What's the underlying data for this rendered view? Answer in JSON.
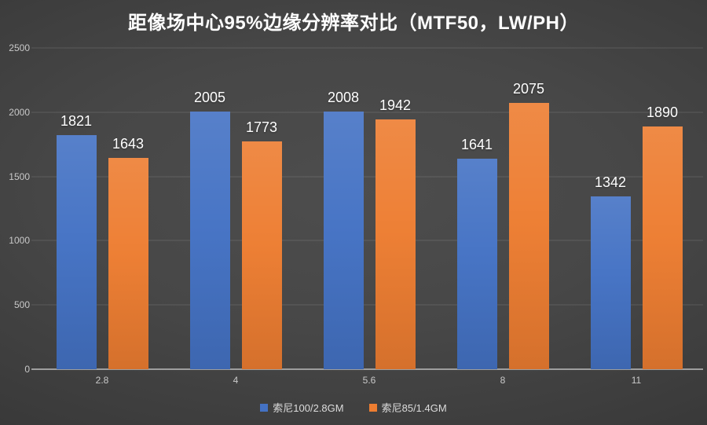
{
  "title": "距像场中心95%边缘分辨率对比（MTF50，LW/PH）",
  "chart_data": {
    "type": "bar",
    "title": "距像场中心95%边缘分辨率对比（MTF50，LW/PH）",
    "categories": [
      "2.8",
      "4",
      "5.6",
      "8",
      "11"
    ],
    "series": [
      {
        "name": "索尼100/2.8GM",
        "color": "#4472C4",
        "values": [
          1821,
          2005,
          2008,
          1641,
          1342
        ]
      },
      {
        "name": "索尼85/1.4GM",
        "color": "#ED7D31",
        "values": [
          1643,
          1773,
          1942,
          2075,
          1890
        ]
      }
    ],
    "xlabel": "",
    "ylabel": "",
    "ylim": [
      0,
      2500
    ],
    "yticks": [
      0,
      500,
      1000,
      1500,
      2000,
      2500
    ],
    "grid": true,
    "data_labels": true,
    "legend_position": "bottom"
  },
  "colors": {
    "series_blue": "#4472C4",
    "series_orange": "#ED7D31",
    "background_center": "#4d4d4d",
    "background_edge": "#282828",
    "gridline": "rgba(255,255,255,0.13)",
    "axis_line": "#9e9e9e",
    "tick_label": "#c9c9c9",
    "data_label": "#ffffff",
    "title_text": "#ffffff"
  }
}
